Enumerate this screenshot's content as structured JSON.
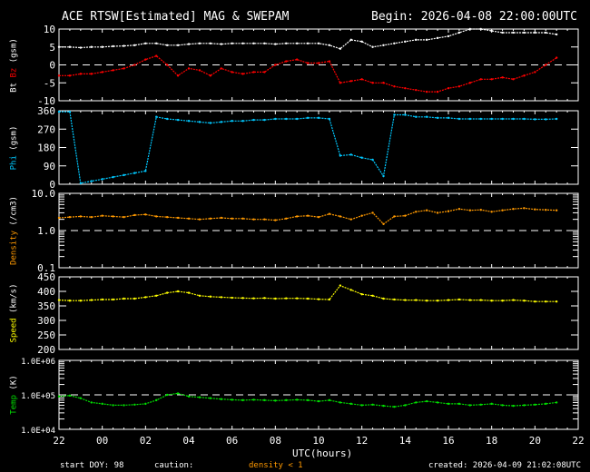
{
  "header": {
    "title": "ACE RTSW[Estimated] MAG & SWEPAM",
    "begin": "Begin: 2026-04-08 22:00:00UTC"
  },
  "footer": {
    "start_doy": "start DOY:  98",
    "caution": "caution:",
    "density_caution": "density < 1",
    "created": "created: 2026-04-09 21:02:08UTC"
  },
  "colors": {
    "bt": "#ffffff",
    "bz": "#ff0000",
    "phi": "#00c8ff",
    "density": "#ff9900",
    "speed": "#ffff00",
    "temp": "#00e000"
  },
  "chart_data": {
    "type": "scatter",
    "title": "ACE RTSW[Estimated] MAG & SWEPAM",
    "xlabel": "UTC(hours)",
    "x_ticks": [
      "22",
      "00",
      "02",
      "04",
      "06",
      "08",
      "10",
      "12",
      "14",
      "16",
      "18",
      "20",
      "22"
    ],
    "xlim_hours_since_start": [
      0,
      24
    ],
    "x": [
      0,
      0.5,
      1,
      1.5,
      2,
      2.5,
      3,
      3.5,
      4,
      4.5,
      5,
      5.5,
      6,
      6.5,
      7,
      7.5,
      8,
      8.5,
      9,
      9.5,
      10,
      10.5,
      11,
      11.5,
      12,
      12.5,
      13,
      13.5,
      14,
      14.5,
      15,
      15.5,
      16,
      16.5,
      17,
      17.5,
      18,
      18.5,
      19,
      19.5,
      20,
      20.5,
      21,
      21.5,
      22,
      22.5,
      23
    ],
    "panels": [
      {
        "id": "mag",
        "ylabel_parts": [
          "Bt",
          "Bz",
          "(gsm)"
        ],
        "ylim": [
          -10,
          10
        ],
        "scale": "linear",
        "ticks": [
          "10",
          "5",
          "0",
          "-5",
          "-10"
        ],
        "tick_values": [
          10,
          5,
          0,
          -5,
          -10
        ],
        "dashed": 0,
        "series": [
          {
            "name": "Bt",
            "color_key": "bt",
            "values": [
              5,
              5,
              4.8,
              5,
              5,
              5.2,
              5.3,
              5.5,
              6,
              6,
              5.5,
              5.5,
              5.8,
              6,
              6,
              5.8,
              6,
              6,
              6,
              6,
              5.8,
              6,
              6,
              6,
              6,
              5.5,
              4.5,
              7,
              6.5,
              5,
              5.5,
              6,
              6.5,
              7,
              7,
              7.5,
              8,
              9,
              10,
              10,
              9.5,
              9,
              9,
              9,
              9,
              9,
              8.5
            ]
          },
          {
            "name": "Bz",
            "color_key": "bz",
            "values": [
              -3,
              -3,
              -2.5,
              -2.5,
              -2,
              -1.5,
              -1,
              0,
              1.5,
              2.5,
              0,
              -3,
              -1,
              -1.5,
              -3,
              -1,
              -2,
              -2.5,
              -2,
              -2,
              0,
              1,
              1.5,
              0.5,
              0.5,
              1,
              -5,
              -4.5,
              -4,
              -5,
              -5,
              -6,
              -6.5,
              -7,
              -7.5,
              -7.5,
              -6.5,
              -6,
              -5,
              -4,
              -4,
              -3.5,
              -4,
              -3,
              -2,
              0,
              2
            ]
          }
        ]
      },
      {
        "id": "phi",
        "ylabel_parts": [
          "Phi",
          "(gsm)"
        ],
        "ylim": [
          0,
          360
        ],
        "scale": "linear",
        "ticks": [
          "360",
          "270",
          "180",
          "90",
          "0"
        ],
        "tick_values": [
          360,
          270,
          180,
          90,
          0
        ],
        "series": [
          {
            "name": "Phi",
            "color_key": "phi",
            "values": [
              355,
              355,
              5,
              15,
              25,
              35,
              45,
              55,
              65,
              330,
              320,
              315,
              310,
              305,
              300,
              305,
              310,
              310,
              315,
              315,
              320,
              320,
              320,
              325,
              325,
              320,
              140,
              145,
              130,
              120,
              40,
              340,
              340,
              330,
              330,
              325,
              325,
              320,
              320,
              320,
              320,
              320,
              320,
              320,
              318,
              318,
              320
            ]
          }
        ]
      },
      {
        "id": "density",
        "ylabel_parts": [
          "Density",
          "(/cm3)"
        ],
        "ylim": [
          0.1,
          10
        ],
        "scale": "log",
        "ticks": [
          "10.0",
          "1.0",
          "0.1"
        ],
        "tick_values": [
          10,
          1,
          0.1
        ],
        "dashed": 1,
        "series": [
          {
            "name": "Density",
            "color_key": "density",
            "values": [
              2.2,
              2.3,
              2.4,
              2.3,
              2.5,
              2.4,
              2.3,
              2.6,
              2.7,
              2.4,
              2.3,
              2.2,
              2.1,
              2.0,
              2.1,
              2.2,
              2.1,
              2.1,
              2.0,
              2.0,
              1.9,
              2.1,
              2.4,
              2.5,
              2.3,
              2.8,
              2.4,
              2.0,
              2.5,
              3.0,
              1.5,
              2.4,
              2.5,
              3.2,
              3.5,
              3.0,
              3.3,
              3.8,
              3.5,
              3.6,
              3.2,
              3.5,
              3.8,
              4.0,
              3.7,
              3.6,
              3.5
            ]
          }
        ]
      },
      {
        "id": "speed",
        "ylabel_parts": [
          "Speed",
          "(km/s)"
        ],
        "ylim": [
          200,
          450
        ],
        "scale": "linear",
        "ticks": [
          "450",
          "400",
          "350",
          "300",
          "250",
          "200"
        ],
        "tick_values": [
          450,
          400,
          350,
          300,
          250,
          200
        ],
        "series": [
          {
            "name": "Speed",
            "color_key": "speed",
            "values": [
              370,
              368,
              368,
              370,
              372,
              372,
              375,
              375,
              380,
              385,
              395,
              400,
              395,
              385,
              382,
              380,
              378,
              377,
              376,
              377,
              375,
              376,
              376,
              375,
              373,
              372,
              420,
              405,
              390,
              385,
              375,
              372,
              370,
              370,
              368,
              368,
              370,
              372,
              370,
              370,
              368,
              368,
              370,
              368,
              365,
              365,
              365
            ]
          }
        ]
      },
      {
        "id": "temp",
        "ylabel_parts": [
          "Temp",
          "(K)"
        ],
        "ylim": [
          10000,
          1000000
        ],
        "scale": "log",
        "ticks": [
          "1.0E+06",
          "1.0E+05",
          "1.0E+04"
        ],
        "tick_values": [
          1000000,
          100000,
          10000
        ],
        "dashed": 100000,
        "series": [
          {
            "name": "Temp",
            "color_key": "temp",
            "values": [
              90000,
              95000,
              80000,
              60000,
              55000,
              50000,
              50000,
              52000,
              55000,
              70000,
              100000,
              110000,
              90000,
              85000,
              80000,
              75000,
              72000,
              70000,
              72000,
              70000,
              68000,
              70000,
              72000,
              70000,
              65000,
              70000,
              60000,
              55000,
              50000,
              52000,
              48000,
              45000,
              50000,
              60000,
              65000,
              60000,
              55000,
              55000,
              50000,
              52000,
              55000,
              50000,
              48000,
              50000,
              52000,
              55000,
              60000
            ]
          }
        ]
      }
    ]
  }
}
